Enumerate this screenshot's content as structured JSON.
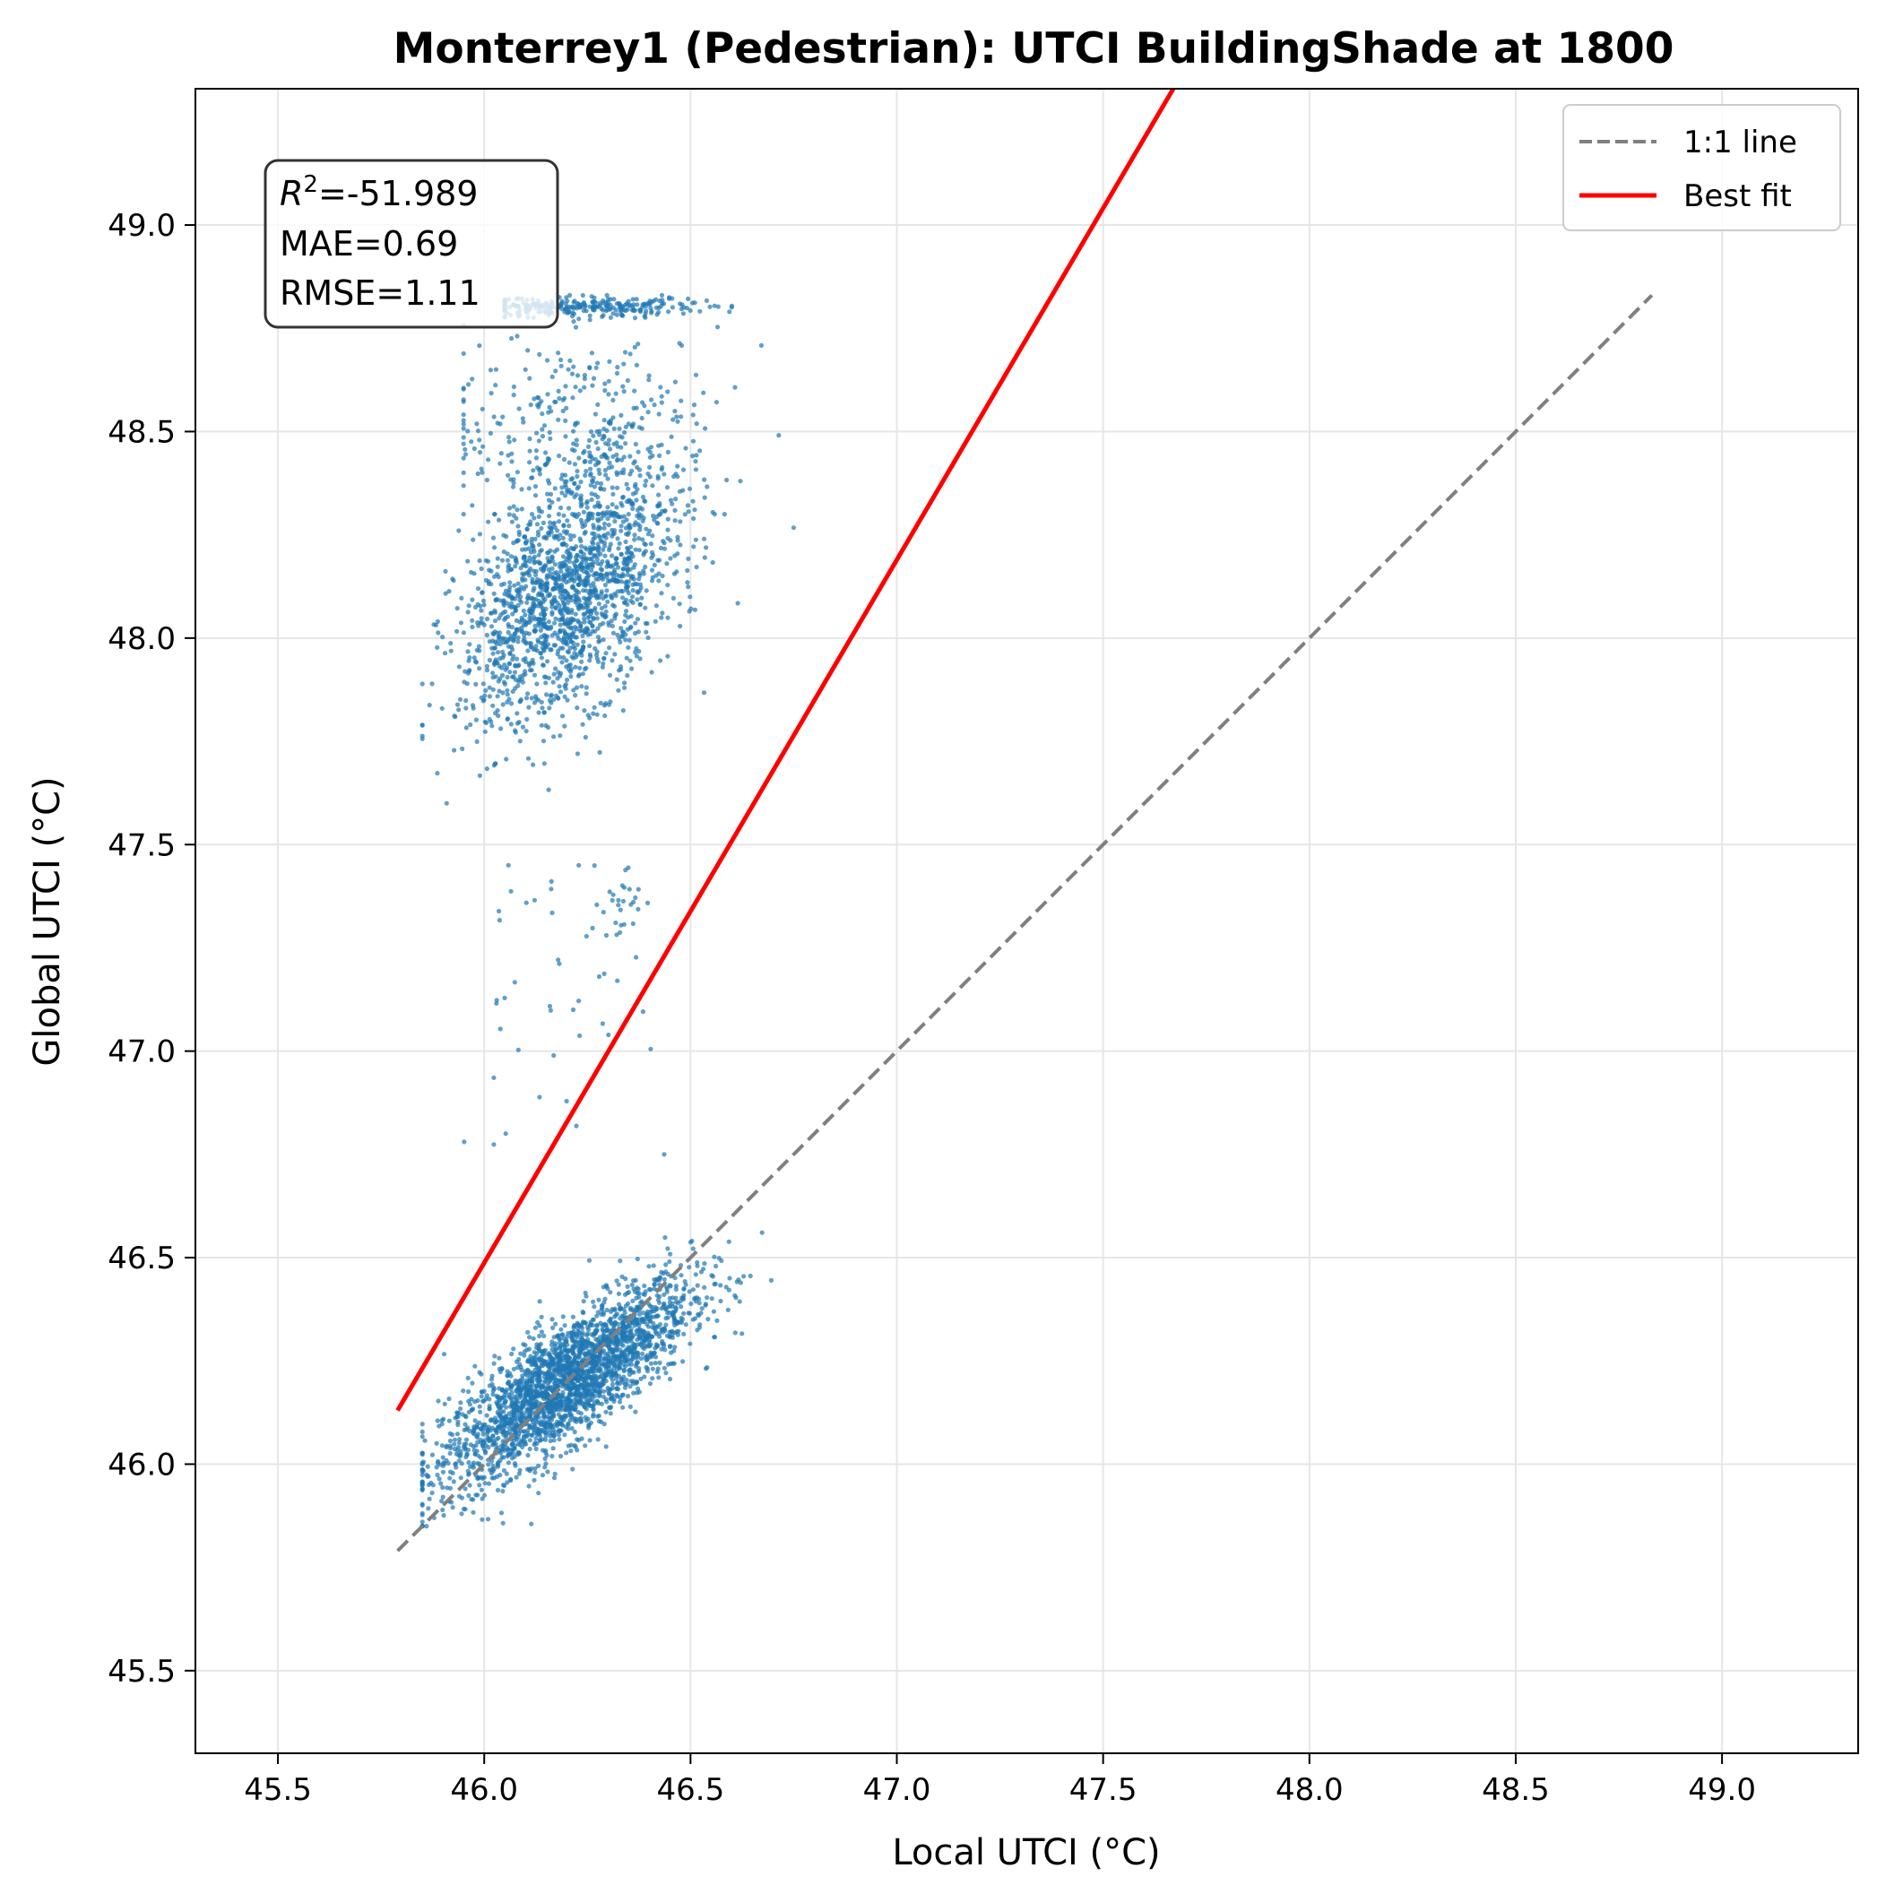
{
  "chart_data": {
    "type": "scatter",
    "title": "Monterrey1 (Pedestrian): UTCI BuildingShade at 1800",
    "xlabel": "Local UTCI (°C)",
    "ylabel": "Global UTCI (°C)",
    "xlim": [
      45.3,
      49.33
    ],
    "ylim": [
      45.3,
      49.33
    ],
    "xticks": [
      45.5,
      46.0,
      46.5,
      47.0,
      47.5,
      48.0,
      48.5,
      49.0
    ],
    "yticks": [
      45.5,
      46.0,
      46.5,
      47.0,
      47.5,
      48.0,
      48.5,
      49.0
    ],
    "xtick_labels": [
      "45.5",
      "46.0",
      "46.5",
      "47.0",
      "47.5",
      "48.0",
      "48.5",
      "49.0"
    ],
    "ytick_labels": [
      "45.5",
      "46.0",
      "46.5",
      "47.0",
      "47.5",
      "48.0",
      "48.5",
      "49.0"
    ],
    "grid": true,
    "stats": {
      "r2_symbol": "R",
      "r2_exponent": "2",
      "r2_value": "=-51.989",
      "mae": "MAE=0.69",
      "rmse": "RMSE=1.11"
    },
    "legend": {
      "placement": "top-right",
      "entries": [
        "1:1 line",
        "Best fit"
      ]
    },
    "series": [
      {
        "name": "1:1 line",
        "kind": "line",
        "style": "dashed",
        "color": "#808080",
        "x": [
          45.79,
          48.83
        ],
        "y": [
          45.79,
          48.83
        ]
      },
      {
        "name": "Best fit",
        "kind": "line",
        "style": "solid",
        "color": "#ff0000",
        "x": [
          45.79,
          47.67
        ],
        "y": [
          46.13,
          49.33
        ]
      }
    ],
    "scatter_clusters": [
      {
        "cx": 46.2,
        "cy": 46.2,
        "sx": 0.15,
        "sy": 0.12,
        "rho": 0.8,
        "count": 2600,
        "x_range": [
          45.85,
          46.7
        ],
        "y_range": [
          45.85,
          46.75
        ]
      },
      {
        "cx": 46.2,
        "cy": 48.1,
        "sx": 0.13,
        "sy": 0.15,
        "rho": 0.45,
        "count": 1700,
        "x_range": [
          45.85,
          46.75
        ],
        "y_range": [
          47.6,
          48.55
        ]
      },
      {
        "cx": 46.25,
        "cy": 48.5,
        "sx": 0.17,
        "sy": 0.12,
        "rho": 0.0,
        "count": 350,
        "x_range": [
          45.95,
          46.8
        ],
        "y_range": [
          48.3,
          48.82
        ]
      },
      {
        "cx": 46.25,
        "cy": 48.8,
        "sx": 0.15,
        "sy": 0.012,
        "rho": 0.0,
        "count": 260,
        "x_range": [
          46.05,
          46.6
        ],
        "y_range": [
          48.76,
          48.83
        ]
      },
      {
        "cx": 46.15,
        "cy": 47.15,
        "sx": 0.12,
        "sy": 0.2,
        "rho": 0.0,
        "count": 45,
        "x_range": [
          45.9,
          46.5
        ],
        "y_range": [
          46.75,
          47.45
        ]
      },
      {
        "cx": 46.34,
        "cy": 47.36,
        "sx": 0.03,
        "sy": 0.04,
        "rho": 0.6,
        "count": 25,
        "x_range": [
          46.25,
          46.42
        ],
        "y_range": [
          47.25,
          47.45
        ]
      }
    ],
    "scatter_color": "#1f77b4"
  }
}
